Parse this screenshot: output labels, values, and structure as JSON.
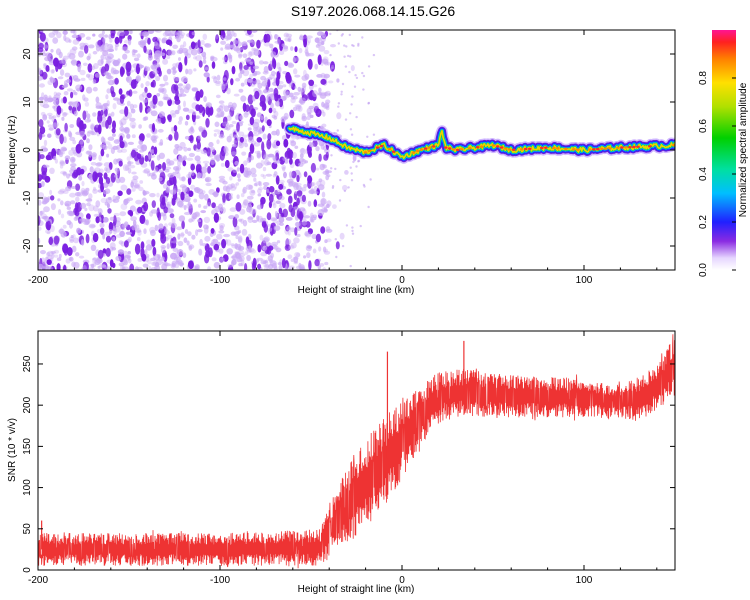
{
  "title": "S197.2026.068.14.15.G26",
  "colors": {
    "snr_line": "#ee3333",
    "scatter_purple": "#7a1fe0",
    "axis": "#000000",
    "background": "#ffffff"
  },
  "chart_data": [
    {
      "type": "heatmap",
      "name": "spectrogram",
      "xlabel": "Height of straight line (km)",
      "ylabel": "Frequency (Hz)",
      "xlim": [
        -200,
        150
      ],
      "ylim": [
        -25,
        25
      ],
      "xticks": [
        -200,
        -100,
        0,
        100
      ],
      "xtick_labels": [
        "-200",
        "-100",
        "0",
        "100"
      ],
      "yticks": [
        -20,
        -10,
        0,
        10,
        20
      ],
      "ytick_labels": [
        "-20",
        "-10",
        "0",
        "10",
        "20"
      ],
      "noise_region_x": [
        -200,
        -40
      ],
      "ridge": {
        "x": [
          -62,
          -50,
          -40,
          -30,
          -20,
          -10,
          0,
          10,
          20,
          22,
          24,
          30,
          40,
          50,
          60,
          80,
          100,
          120,
          150
        ],
        "freq": [
          4.5,
          3.5,
          2.5,
          0.5,
          -0.5,
          1.0,
          -1.5,
          0.0,
          1.0,
          4.0,
          0.5,
          0.0,
          0.5,
          1.0,
          0.0,
          0.5,
          0.0,
          0.5,
          1.0
        ]
      },
      "colorbar": {
        "label": "Normalized spectral amplitude",
        "range": [
          0.0,
          1.0
        ],
        "ticks": [
          0.0,
          0.2,
          0.4,
          0.6,
          0.8
        ],
        "tick_labels": [
          "0.0",
          "0.2",
          "0.4",
          "0.6",
          "0.8"
        ]
      }
    },
    {
      "type": "line",
      "name": "snr",
      "xlabel": "Height of straight line (km)",
      "ylabel": "SNR (10 * v/v)",
      "xlim": [
        -200,
        150
      ],
      "ylim": [
        0,
        290
      ],
      "xticks": [
        -200,
        -100,
        0,
        100
      ],
      "xtick_labels": [
        "-200",
        "-100",
        "0",
        "100"
      ],
      "yticks": [
        0,
        50,
        100,
        150,
        200,
        250
      ],
      "ytick_labels": [
        "0",
        "50",
        "100",
        "150",
        "200",
        "250"
      ],
      "envelope": {
        "x": [
          -200,
          -150,
          -100,
          -60,
          -44,
          -40,
          -30,
          -20,
          -10,
          0,
          10,
          20,
          30,
          50,
          80,
          100,
          120,
          130,
          140,
          150
        ],
        "low": [
          5,
          5,
          5,
          5,
          5,
          15,
          30,
          50,
          75,
          110,
          150,
          175,
          185,
          185,
          185,
          185,
          185,
          180,
          195,
          210
        ],
        "high": [
          45,
          45,
          45,
          48,
          50,
          80,
          125,
          160,
          185,
          205,
          225,
          240,
          245,
          240,
          235,
          232,
          225,
          235,
          250,
          285
        ]
      },
      "spikes": [
        {
          "x": -8,
          "value": 265
        },
        {
          "x": 34,
          "value": 278
        },
        {
          "x": -198,
          "value": 60
        }
      ]
    }
  ]
}
